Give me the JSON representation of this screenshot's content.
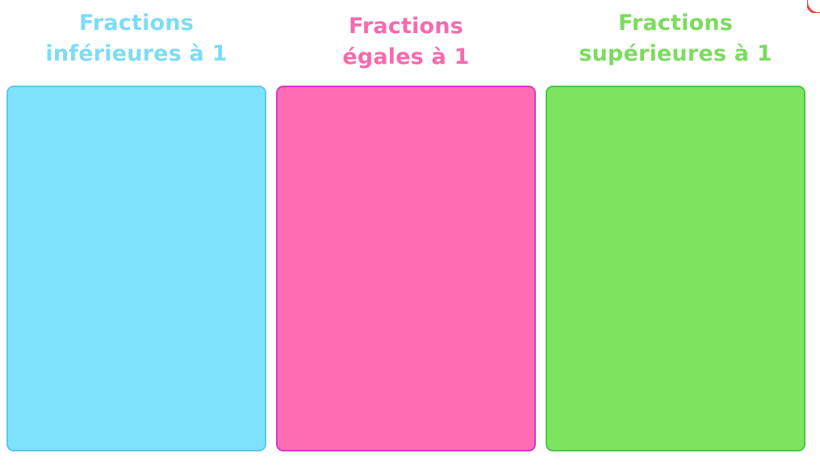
{
  "categories": [
    {
      "heading_line1": "Fractions",
      "heading_line2": "inférieures à 1",
      "heading_color": "#7ddcf6",
      "zone_color": "#7de3fd",
      "zone_border": "#5fc8ee"
    },
    {
      "heading_line1": "Fractions",
      "heading_line2": "égales à 1",
      "heading_color": "#f66aad",
      "zone_color": "#fe6db3",
      "zone_border": "#dc35c6"
    },
    {
      "heading_line1": "Fractions",
      "heading_line2": "supérieures à 1",
      "heading_color": "#7cdc5e",
      "zone_color": "#7de45f",
      "zone_border": "#4cc744"
    }
  ],
  "accent_color": "#e0403f"
}
